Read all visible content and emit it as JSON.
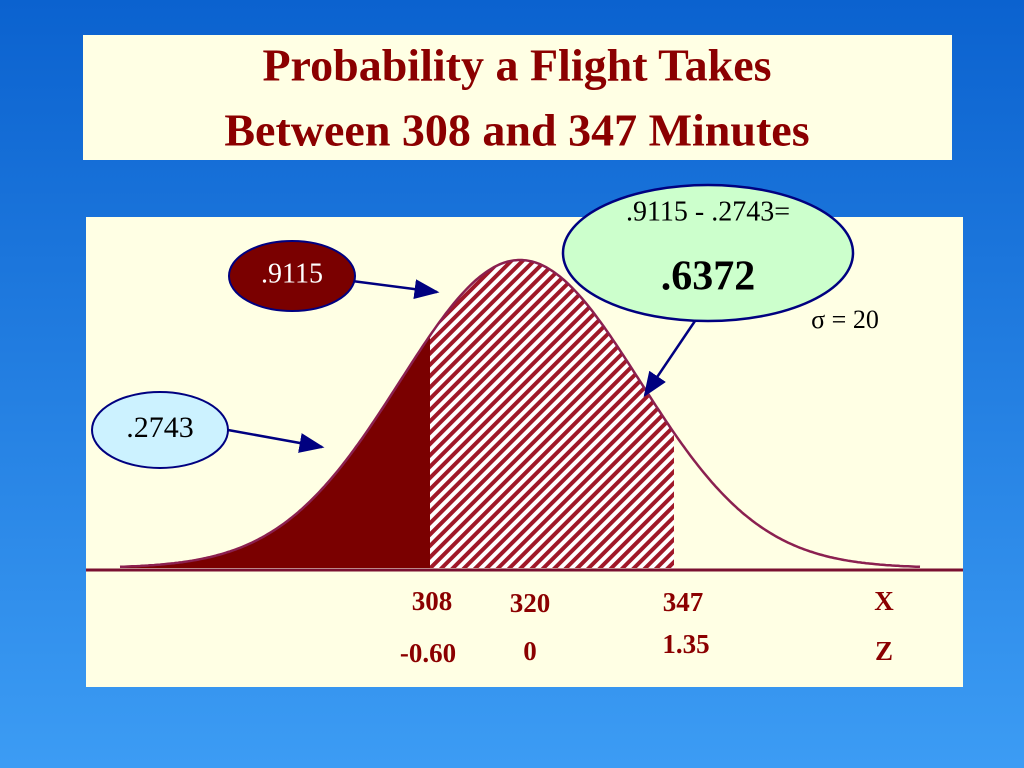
{
  "title": {
    "line1": "Probability a Flight Takes",
    "line2": "Between 308 and 347 Minutes"
  },
  "callouts": {
    "upper_probability": ".9115",
    "lower_probability": ".2743",
    "difference": {
      "expression": ".9115 - .2743=",
      "result": ".6372"
    }
  },
  "sigma_label": "σ = 20",
  "axis": {
    "x_label": "X",
    "z_label": "Z",
    "x_values": [
      "308",
      "320",
      "347"
    ],
    "z_values": [
      "-0.60",
      "0",
      "1.35"
    ]
  }
}
